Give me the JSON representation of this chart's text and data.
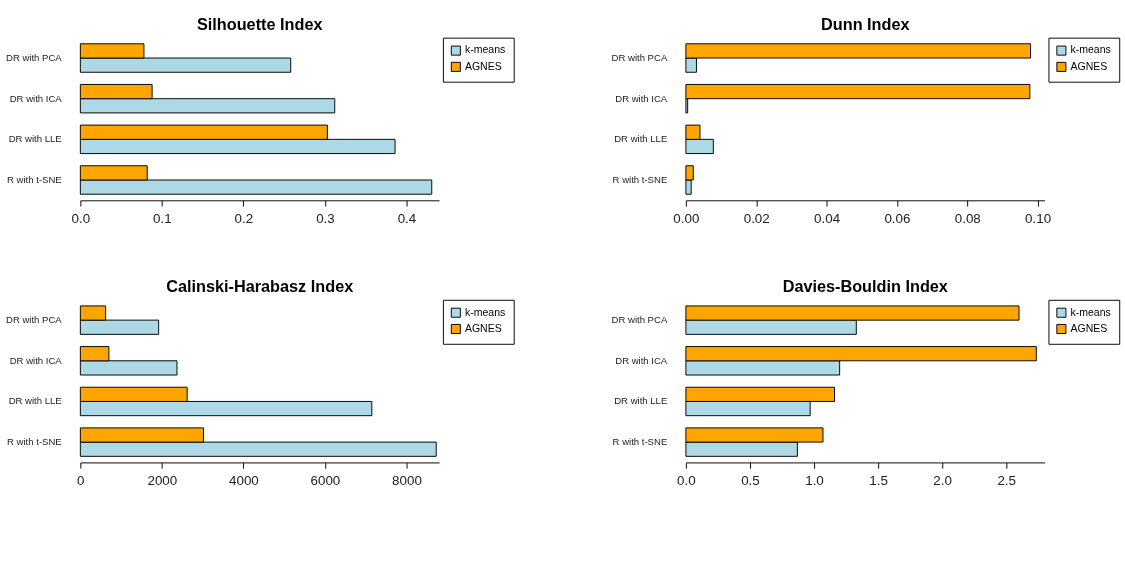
{
  "chart_data": [
    {
      "type": "bar",
      "orientation": "horizontal",
      "title": "Silhouette Index",
      "categories": [
        "DR with PCA",
        "DR with ICA",
        "DR with LLE",
        "R with t-SNE"
      ],
      "series": [
        {
          "name": "k-means",
          "color": "#add8e6",
          "values": [
            0.258,
            0.312,
            0.386,
            0.431
          ]
        },
        {
          "name": "AGNES",
          "color": "#ffa500",
          "values": [
            0.078,
            0.088,
            0.303,
            0.082
          ]
        }
      ],
      "xlim": [
        0,
        0.44
      ],
      "xticks": [
        {
          "value": 0,
          "label": "0.0"
        },
        0.1,
        0.2,
        0.3,
        0.4
      ],
      "grid": false,
      "legend": "top right"
    },
    {
      "type": "bar",
      "orientation": "horizontal",
      "title": "Dunn Index",
      "categories": [
        "DR with PCA",
        "DR with ICA",
        "DR with LLE",
        "R with t-SNE"
      ],
      "series": [
        {
          "name": "k-means",
          "color": "#add8e6",
          "values": [
            0.003,
            0.0005,
            0.0078,
            0.0015
          ]
        },
        {
          "name": "AGNES",
          "color": "#ffa500",
          "values": [
            0.098,
            0.0978,
            0.004,
            0.0021
          ]
        }
      ],
      "xlim": [
        0,
        0.102
      ],
      "xticks": [
        {
          "value": 0,
          "label": "0.00"
        },
        0.02,
        0.04,
        0.06,
        0.08,
        {
          "value": 0.1,
          "label": "0.10"
        }
      ],
      "grid": false,
      "legend": "top right"
    },
    {
      "type": "bar",
      "orientation": "horizontal",
      "title": "Calinski-Harabasz Index",
      "categories": [
        "DR with PCA",
        "DR with ICA",
        "DR with LLE",
        "R with t-SNE"
      ],
      "series": [
        {
          "name": "k-means",
          "color": "#add8e6",
          "values": [
            1920,
            2370,
            7150,
            8730
          ]
        },
        {
          "name": "AGNES",
          "color": "#ffa500",
          "values": [
            620,
            700,
            2620,
            3020
          ]
        }
      ],
      "xlim": [
        0,
        8800
      ],
      "xticks": [
        0,
        {
          "value": 2000,
          "label": "2000"
        },
        {
          "value": 4000,
          "label": "4000"
        },
        {
          "value": 6000,
          "label": "6000"
        },
        {
          "value": 8000,
          "label": "8000"
        }
      ],
      "grid": false,
      "legend": "top right"
    },
    {
      "type": "bar",
      "orientation": "horizontal",
      "title": "Davies-Bouldin Index",
      "categories": [
        "DR with PCA",
        "DR with ICA",
        "DR with LLE",
        "R with t-SNE"
      ],
      "series": [
        {
          "name": "k-means",
          "color": "#add8e6",
          "values": [
            1.33,
            1.2,
            0.97,
            0.87
          ]
        },
        {
          "name": "AGNES",
          "color": "#ffa500",
          "values": [
            2.6,
            2.735,
            1.16,
            1.07
          ]
        }
      ],
      "xlim": [
        0,
        2.8
      ],
      "xticks": [
        {
          "value": 0,
          "label": "0.0"
        },
        0.5,
        {
          "value": 1,
          "label": "1.0"
        },
        1.5,
        {
          "value": 2,
          "label": "2.0"
        },
        2.5
      ],
      "grid": false,
      "legend": "top right"
    }
  ]
}
